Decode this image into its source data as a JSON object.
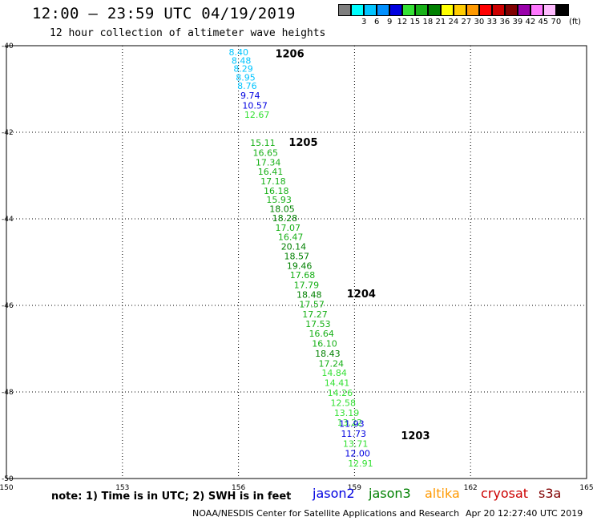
{
  "header": {
    "title": "12:00 – 23:59 UTC 04/19/2019",
    "subtitle": "12 hour collection of altimeter wave heights"
  },
  "legend": {
    "unit": "(ft)",
    "bins": [
      {
        "color": "#7f7f7f",
        "label": ""
      },
      {
        "color": "#00ffff",
        "label": "3"
      },
      {
        "color": "#00c4ff",
        "label": "6"
      },
      {
        "color": "#0090ff",
        "label": "9"
      },
      {
        "color": "#0000e0",
        "label": "12"
      },
      {
        "color": "#34e034",
        "label": "15"
      },
      {
        "color": "#17b017",
        "label": "18"
      },
      {
        "color": "#008000",
        "label": "21"
      },
      {
        "color": "#ffff00",
        "label": "24"
      },
      {
        "color": "#ffcc00",
        "label": "27"
      },
      {
        "color": "#ff9900",
        "label": "30"
      },
      {
        "color": "#ff0000",
        "label": "33"
      },
      {
        "color": "#cc0000",
        "label": "36"
      },
      {
        "color": "#800000",
        "label": "39"
      },
      {
        "color": "#9900aa",
        "label": "42"
      },
      {
        "color": "#ff77ff",
        "label": "45"
      },
      {
        "color": "#ffbbff",
        "label": "70"
      },
      {
        "color": "#000000",
        "label": ""
      }
    ]
  },
  "map": {
    "lon_ticks": [
      150,
      153,
      156,
      159,
      162,
      165
    ],
    "lat_ticks": [
      -40,
      -42,
      -44,
      -46,
      -48,
      -50
    ],
    "lon_labels": [
      "150",
      "153",
      "156",
      "159",
      "162",
      "165"
    ],
    "lat_labels": [
      "-40",
      "-42",
      "-44",
      "-46",
      "-48",
      "-50"
    ]
  },
  "tracks": [
    {
      "label": "1206",
      "lon": 156.95,
      "lat": -40.18
    },
    {
      "label": "1205",
      "lon": 157.3,
      "lat": -42.22
    },
    {
      "label": "1204",
      "lon": 158.8,
      "lat": -45.72
    },
    {
      "label": "1203",
      "lon": 160.2,
      "lat": -49.0
    }
  ],
  "observations": [
    {
      "v": "8.40",
      "lon": 155.75,
      "lat": -40.15,
      "c": "#00c4ff"
    },
    {
      "v": "8.48",
      "lon": 155.82,
      "lat": -40.34,
      "c": "#00c4ff"
    },
    {
      "v": "8.29",
      "lon": 155.87,
      "lat": -40.53,
      "c": "#00c4ff"
    },
    {
      "v": "8.95",
      "lon": 155.93,
      "lat": -40.73,
      "c": "#00c4ff"
    },
    {
      "v": "8.76",
      "lon": 155.97,
      "lat": -40.93,
      "c": "#00c4ff"
    },
    {
      "v": "9.74",
      "lon": 156.05,
      "lat": -41.15,
      "c": "#0000e0"
    },
    {
      "v": "10.57",
      "lon": 156.1,
      "lat": -41.38,
      "c": "#0000e0"
    },
    {
      "v": "12.67",
      "lon": 156.15,
      "lat": -41.59,
      "c": "#34e034"
    },
    {
      "v": "15.11",
      "lon": 156.3,
      "lat": -42.24,
      "c": "#17b017"
    },
    {
      "v": "16.65",
      "lon": 156.37,
      "lat": -42.47,
      "c": "#17b017"
    },
    {
      "v": "17.34",
      "lon": 156.44,
      "lat": -42.69,
      "c": "#17b017"
    },
    {
      "v": "16.41",
      "lon": 156.5,
      "lat": -42.91,
      "c": "#17b017"
    },
    {
      "v": "17.18",
      "lon": 156.57,
      "lat": -43.13,
      "c": "#17b017"
    },
    {
      "v": "16.18",
      "lon": 156.65,
      "lat": -43.35,
      "c": "#17b017"
    },
    {
      "v": "15.93",
      "lon": 156.72,
      "lat": -43.56,
      "c": "#17b017"
    },
    {
      "v": "18.05",
      "lon": 156.8,
      "lat": -43.77,
      "c": "#008000"
    },
    {
      "v": "18.28",
      "lon": 156.87,
      "lat": -43.98,
      "c": "#008000"
    },
    {
      "v": "17.07",
      "lon": 156.95,
      "lat": -44.2,
      "c": "#17b017"
    },
    {
      "v": "16.47",
      "lon": 157.02,
      "lat": -44.42,
      "c": "#17b017"
    },
    {
      "v": "20.14",
      "lon": 157.1,
      "lat": -44.64,
      "c": "#008000"
    },
    {
      "v": "18.57",
      "lon": 157.18,
      "lat": -44.86,
      "c": "#008000"
    },
    {
      "v": "19.46",
      "lon": 157.25,
      "lat": -45.08,
      "c": "#008000"
    },
    {
      "v": "17.68",
      "lon": 157.33,
      "lat": -45.3,
      "c": "#17b017"
    },
    {
      "v": "17.79",
      "lon": 157.43,
      "lat": -45.53,
      "c": "#17b017"
    },
    {
      "v": "18.48",
      "lon": 157.5,
      "lat": -45.75,
      "c": "#008000"
    },
    {
      "v": "17.57",
      "lon": 157.57,
      "lat": -45.97,
      "c": "#17b017"
    },
    {
      "v": "17.27",
      "lon": 157.65,
      "lat": -46.2,
      "c": "#17b017"
    },
    {
      "v": "17.53",
      "lon": 157.73,
      "lat": -46.43,
      "c": "#17b017"
    },
    {
      "v": "16.64",
      "lon": 157.82,
      "lat": -46.65,
      "c": "#17b017"
    },
    {
      "v": "16.10",
      "lon": 157.9,
      "lat": -46.88,
      "c": "#17b017"
    },
    {
      "v": "18.43",
      "lon": 157.98,
      "lat": -47.11,
      "c": "#008000"
    },
    {
      "v": "17.24",
      "lon": 158.07,
      "lat": -47.34,
      "c": "#17b017"
    },
    {
      "v": "14.84",
      "lon": 158.15,
      "lat": -47.56,
      "c": "#34e034"
    },
    {
      "v": "14.41",
      "lon": 158.22,
      "lat": -47.79,
      "c": "#34e034"
    },
    {
      "v": "14.26",
      "lon": 158.3,
      "lat": -48.02,
      "c": "#34e034"
    },
    {
      "v": "12.58",
      "lon": 158.38,
      "lat": -48.25,
      "c": "#34e034"
    },
    {
      "v": "13.19",
      "lon": 158.47,
      "lat": -48.48,
      "c": "#34e034"
    },
    {
      "v": "13.22",
      "lon": 158.55,
      "lat": -48.7,
      "c": "#34e034"
    },
    {
      "v": "11.93",
      "lon": 158.6,
      "lat": -48.73,
      "c": "#0000e0"
    },
    {
      "v": "11.73",
      "lon": 158.65,
      "lat": -48.96,
      "c": "#0000e0"
    },
    {
      "v": "13.71",
      "lon": 158.7,
      "lat": -49.19,
      "c": "#34e034"
    },
    {
      "v": "12.00",
      "lon": 158.75,
      "lat": -49.42,
      "c": "#0000e0"
    },
    {
      "v": "12.91",
      "lon": 158.83,
      "lat": -49.65,
      "c": "#34e034"
    }
  ],
  "footer": {
    "note": "note:  1) Time is in UTC;  2) SWH is in feet",
    "satellites": [
      {
        "name": "jason2",
        "color": "#0000e0"
      },
      {
        "name": "jason3",
        "color": "#008000"
      },
      {
        "name": "altika",
        "color": "#ff9900"
      },
      {
        "name": "cryosat",
        "color": "#cc0000"
      },
      {
        "name": "s3a",
        "color": "#800000"
      }
    ],
    "credit": "NOAA/NESDIS Center for Satellite Applications and Research",
    "timestamp": "Apr 20 12:27:40 UTC 2019"
  }
}
